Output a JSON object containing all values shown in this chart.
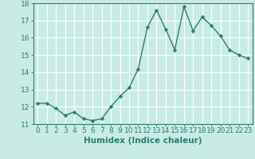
{
  "x": [
    0,
    1,
    2,
    3,
    4,
    5,
    6,
    7,
    8,
    9,
    10,
    11,
    12,
    13,
    14,
    15,
    16,
    17,
    18,
    19,
    20,
    21,
    22,
    23
  ],
  "y": [
    12.2,
    12.2,
    11.9,
    11.5,
    11.7,
    11.3,
    11.2,
    11.3,
    12.0,
    12.6,
    13.1,
    14.2,
    16.6,
    17.6,
    16.5,
    15.3,
    17.8,
    16.4,
    17.2,
    16.7,
    16.1,
    15.3,
    15.0,
    14.8
  ],
  "line_color": "#2e7d6e",
  "marker": "D",
  "marker_size": 2.2,
  "bg_color": "#c8ebe6",
  "grid_color": "#ffffff",
  "xlabel": "Humidex (Indice chaleur)",
  "ylim": [
    11,
    18
  ],
  "xlim": [
    -0.5,
    23.5
  ],
  "yticks": [
    11,
    12,
    13,
    14,
    15,
    16,
    17,
    18
  ],
  "xticks": [
    0,
    1,
    2,
    3,
    4,
    5,
    6,
    7,
    8,
    9,
    10,
    11,
    12,
    13,
    14,
    15,
    16,
    17,
    18,
    19,
    20,
    21,
    22,
    23
  ],
  "tick_color": "#2e7d6e",
  "label_color": "#2e7d6e",
  "xlabel_fontsize": 7.5,
  "tick_fontsize": 6.5,
  "linewidth": 1.0
}
